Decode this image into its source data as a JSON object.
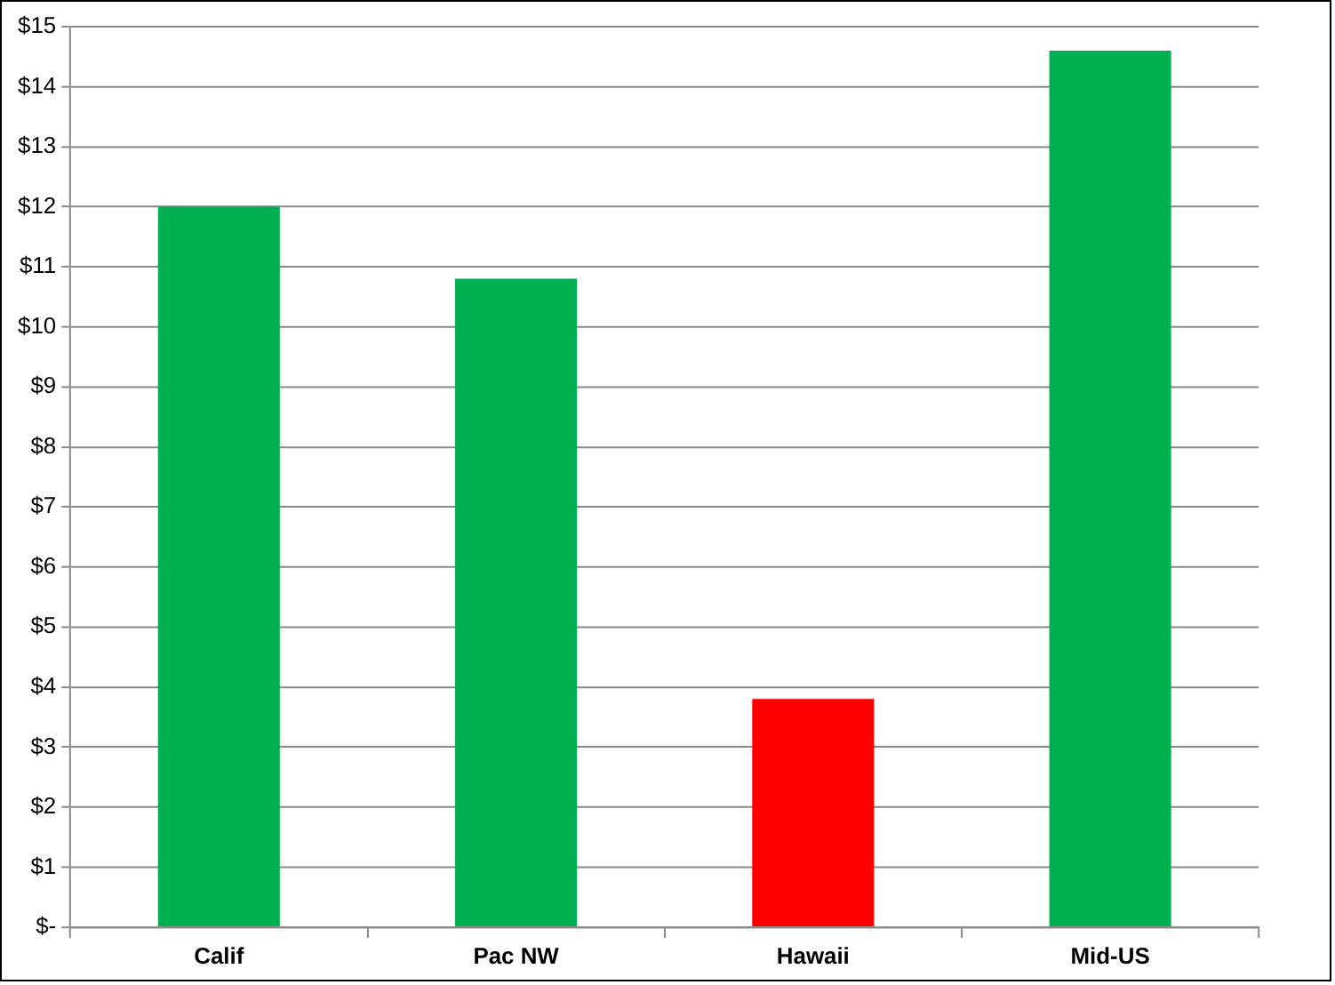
{
  "chart_data": {
    "type": "bar",
    "categories": [
      "Calif",
      "Pac NW",
      "Hawaii",
      "Mid-US"
    ],
    "values": [
      12.0,
      10.8,
      3.8,
      14.6
    ],
    "colors": [
      "#00b050",
      "#00b050",
      "#ff0000",
      "#00b050"
    ],
    "ylim": [
      0,
      15
    ],
    "yticks": [
      {
        "value": 0,
        "label": "$-"
      },
      {
        "value": 1,
        "label": "$1"
      },
      {
        "value": 2,
        "label": "$2"
      },
      {
        "value": 3,
        "label": "$3"
      },
      {
        "value": 4,
        "label": "$4"
      },
      {
        "value": 5,
        "label": "$5"
      },
      {
        "value": 6,
        "label": "$6"
      },
      {
        "value": 7,
        "label": "$7"
      },
      {
        "value": 8,
        "label": "$8"
      },
      {
        "value": 9,
        "label": "$9"
      },
      {
        "value": 10,
        "label": "$10"
      },
      {
        "value": 11,
        "label": "$11"
      },
      {
        "value": 12,
        "label": "$12"
      },
      {
        "value": 13,
        "label": "$13"
      },
      {
        "value": 14,
        "label": "$14"
      },
      {
        "value": 15,
        "label": "$15"
      }
    ],
    "grid": "y",
    "legend": false
  }
}
